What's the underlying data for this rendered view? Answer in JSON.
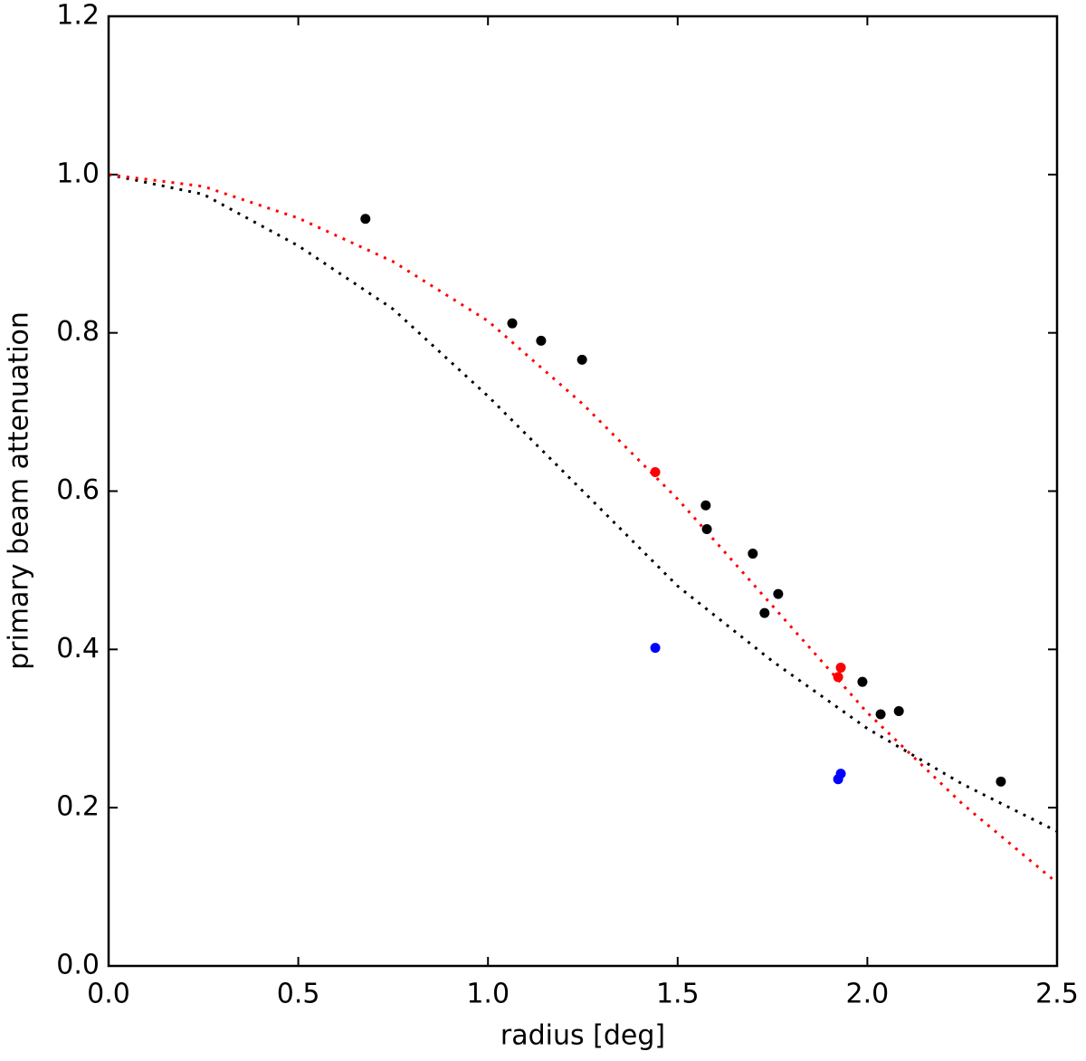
{
  "chart_data": {
    "type": "scatter",
    "xlabel": "radius [deg]",
    "ylabel": "primary beam attenuation",
    "xlim": [
      0,
      2.5
    ],
    "ylim": [
      0,
      1.2
    ],
    "xticks": [
      {
        "value": 0,
        "label": "0.0"
      },
      0.5,
      {
        "value": 1,
        "label": "1.0"
      },
      1.5,
      {
        "value": 2,
        "label": "2.0"
      },
      2.5
    ],
    "yticks": [
      {
        "value": 0,
        "label": "0.0"
      },
      0.2,
      0.4,
      0.6,
      0.8,
      {
        "value": 1,
        "label": "1.0"
      },
      1.2
    ],
    "series": [
      {
        "color": "#000000",
        "line": "dotted",
        "x": [
          0,
          0.25,
          0.5,
          0.75,
          1.0,
          1.25,
          1.5,
          1.75,
          2.0,
          2.25,
          2.5
        ],
        "values": [
          1.0,
          0.975,
          0.91,
          0.83,
          0.72,
          0.6,
          0.48,
          0.385,
          0.3,
          0.23,
          0.17
        ]
      },
      {
        "color": "#ff0000",
        "line": "dotted",
        "x": [
          0,
          0.25,
          0.5,
          0.75,
          1.0,
          1.25,
          1.5,
          1.75,
          2.0,
          2.25,
          2.5
        ],
        "values": [
          1.0,
          0.985,
          0.945,
          0.89,
          0.815,
          0.71,
          0.59,
          0.455,
          0.32,
          0.205,
          0.105
        ]
      },
      {
        "color": "#000000",
        "line": "none",
        "x": [
          0.677,
          1.064,
          1.14,
          1.248,
          1.574,
          1.577,
          1.698,
          1.729,
          1.765,
          1.987,
          2.035,
          2.083,
          2.352
        ],
        "values": [
          0.944,
          0.812,
          0.79,
          0.766,
          0.582,
          0.552,
          0.521,
          0.446,
          0.47,
          0.359,
          0.318,
          0.322,
          0.233
        ]
      },
      {
        "color": "#ff0000",
        "line": "none",
        "x": [
          1.441,
          1.923,
          1.93
        ],
        "values": [
          0.624,
          0.365,
          0.377
        ]
      },
      {
        "color": "#0000ff",
        "line": "none",
        "x": [
          1.441,
          1.923,
          1.93
        ],
        "values": [
          0.402,
          0.236,
          0.243
        ]
      }
    ]
  }
}
